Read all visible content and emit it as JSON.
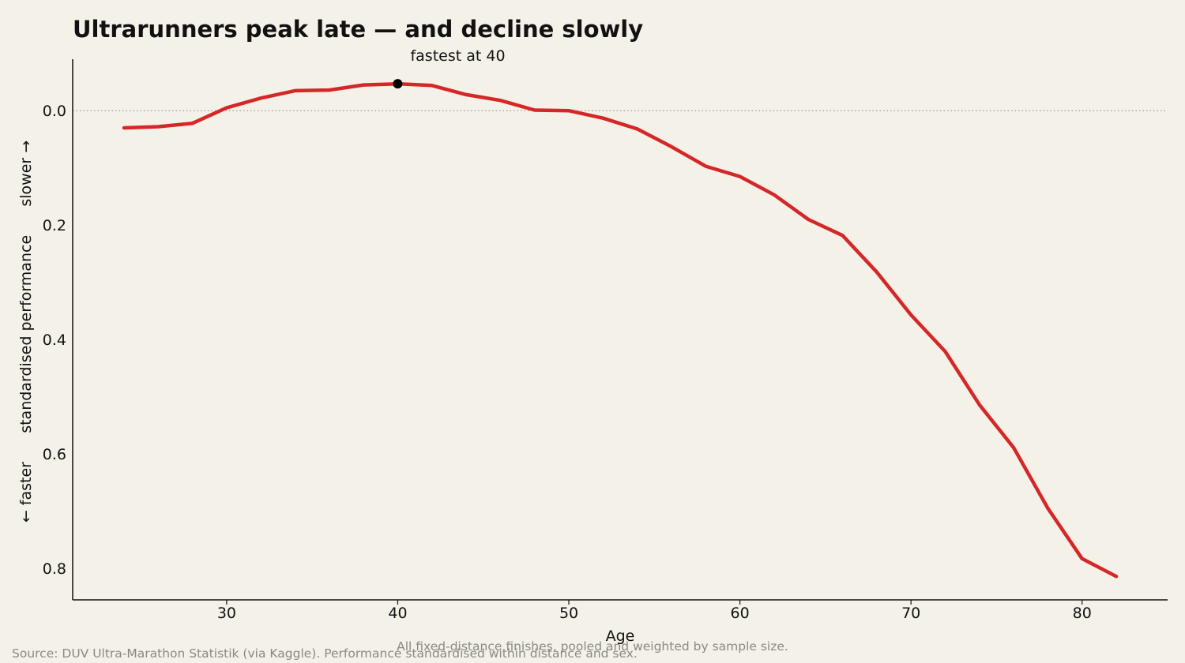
{
  "title": "Ultrarunners peak late — and decline slowly",
  "chart_data": {
    "type": "line",
    "title": "Ultrarunners peak late — and decline slowly",
    "xlabel": "Age",
    "ylabel": "← faster      standardised performance      slower →",
    "xlim": [
      21,
      85
    ],
    "ylim": [
      0.855,
      -0.09
    ],
    "y_inverted": true,
    "grid": false,
    "xticks": [
      30,
      40,
      50,
      60,
      70,
      80
    ],
    "yticks": [
      0.0,
      0.2,
      0.4,
      0.6,
      0.8
    ],
    "ytick_labels": [
      "0.0",
      "0.2",
      "0.4",
      "0.6",
      "0.8"
    ],
    "reference_line": {
      "y": 0.0,
      "style": "dotted"
    },
    "series": [
      {
        "color": "#d62728",
        "x": [
          24,
          26,
          28,
          30,
          32,
          34,
          36,
          38,
          40,
          42,
          44,
          46,
          48,
          50,
          52,
          54,
          56,
          58,
          60,
          62,
          64,
          66,
          68,
          70,
          72,
          74,
          76,
          78,
          80,
          82
        ],
        "y": [
          0.03,
          0.028,
          0.022,
          -0.005,
          -0.022,
          -0.035,
          -0.036,
          -0.045,
          -0.047,
          -0.044,
          -0.028,
          -0.018,
          -0.001,
          0.0,
          0.013,
          0.032,
          0.063,
          0.097,
          0.115,
          0.147,
          0.19,
          0.218,
          0.282,
          0.357,
          0.421,
          0.514,
          0.589,
          0.695,
          0.783,
          0.814
        ]
      }
    ],
    "annotations": [
      {
        "text": "fastest at 40",
        "x": 40,
        "y": -0.047,
        "marker": "dot"
      }
    ]
  },
  "footnotes": {
    "method": "All fixed-distance finishes, pooled and weighted by sample size.",
    "source": "Source: DUV Ultra-Marathon Statistik (via Kaggle). Performance standardised within distance and sex."
  }
}
